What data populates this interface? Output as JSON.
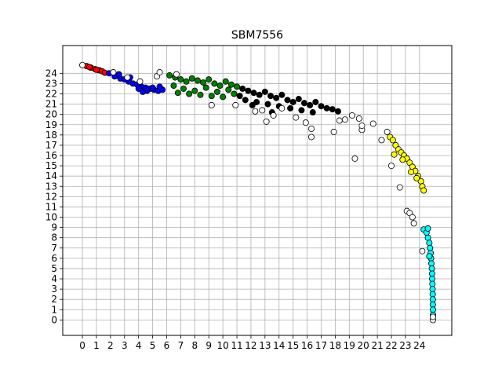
{
  "chart_data": {
    "type": "scatter",
    "title": "SBM7556",
    "xlabel": "",
    "ylabel": "",
    "xlim": [
      -1.4,
      26.3
    ],
    "ylim": [
      -1.5,
      26.7
    ],
    "xticks": [
      0,
      1,
      2,
      3,
      4,
      5,
      6,
      7,
      8,
      9,
      10,
      11,
      12,
      13,
      14,
      15,
      16,
      17,
      18,
      19,
      20,
      21,
      22,
      23,
      24
    ],
    "yticks": [
      0,
      1,
      2,
      3,
      4,
      5,
      6,
      7,
      8,
      9,
      10,
      11,
      12,
      13,
      14,
      15,
      16,
      17,
      18,
      19,
      20,
      21,
      22,
      23,
      24
    ],
    "grid": true,
    "legend": "none",
    "series": [
      {
        "color": "#ff0000",
        "points": [
          [
            0.3,
            24.7
          ],
          [
            0.6,
            24.55
          ],
          [
            0.9,
            24.4
          ],
          [
            1.2,
            24.3
          ],
          [
            1.4,
            24.2
          ],
          [
            1.6,
            24.05
          ],
          [
            0.5,
            24.6
          ],
          [
            1.0,
            24.35
          ]
        ]
      },
      {
        "color": "#0000ff",
        "points": [
          [
            1.9,
            24.0
          ],
          [
            2.3,
            23.7
          ],
          [
            2.7,
            23.5
          ],
          [
            3.0,
            23.4
          ],
          [
            3.3,
            23.2
          ],
          [
            3.6,
            23.0
          ],
          [
            3.9,
            22.9
          ],
          [
            4.2,
            22.7
          ],
          [
            4.5,
            22.6
          ],
          [
            4.8,
            22.5
          ],
          [
            5.1,
            22.4
          ],
          [
            5.4,
            22.3
          ],
          [
            5.7,
            22.4
          ],
          [
            4.0,
            22.5
          ],
          [
            4.6,
            22.3
          ],
          [
            5.0,
            22.6
          ],
          [
            3.4,
            23.6
          ],
          [
            2.6,
            23.9
          ],
          [
            5.5,
            22.7
          ],
          [
            4.3,
            22.2
          ]
        ]
      },
      {
        "color": "#008000",
        "points": [
          [
            6.2,
            23.8
          ],
          [
            6.6,
            23.6
          ],
          [
            7.0,
            23.4
          ],
          [
            7.4,
            23.2
          ],
          [
            7.8,
            23.5
          ],
          [
            8.2,
            23.3
          ],
          [
            8.6,
            23.1
          ],
          [
            9.0,
            23.4
          ],
          [
            9.4,
            23.0
          ],
          [
            9.8,
            22.8
          ],
          [
            10.2,
            23.2
          ],
          [
            10.6,
            22.9
          ],
          [
            11.0,
            22.7
          ],
          [
            6.5,
            22.8
          ],
          [
            7.2,
            22.5
          ],
          [
            8.0,
            22.3
          ],
          [
            8.8,
            22.6
          ],
          [
            9.6,
            22.2
          ],
          [
            10.4,
            22.4
          ],
          [
            6.8,
            22.1
          ],
          [
            7.6,
            22.0
          ],
          [
            8.4,
            21.9
          ],
          [
            9.2,
            21.8
          ],
          [
            10.0,
            21.7
          ],
          [
            10.8,
            22.0
          ]
        ]
      },
      {
        "color": "#000000",
        "points": [
          [
            11.4,
            22.5
          ],
          [
            11.8,
            22.3
          ],
          [
            12.2,
            22.1
          ],
          [
            12.6,
            21.9
          ],
          [
            13.0,
            22.2
          ],
          [
            13.4,
            21.8
          ],
          [
            13.8,
            21.6
          ],
          [
            14.2,
            21.9
          ],
          [
            14.6,
            21.4
          ],
          [
            15.0,
            21.2
          ],
          [
            15.4,
            21.5
          ],
          [
            15.8,
            21.1
          ],
          [
            16.2,
            20.9
          ],
          [
            16.6,
            21.2
          ],
          [
            17.0,
            20.8
          ],
          [
            17.4,
            20.6
          ],
          [
            17.8,
            20.5
          ],
          [
            18.2,
            20.3
          ],
          [
            11.6,
            21.4
          ],
          [
            12.4,
            21.2
          ],
          [
            13.2,
            21.0
          ],
          [
            14.0,
            20.8
          ],
          [
            14.8,
            20.6
          ],
          [
            15.6,
            20.4
          ],
          [
            16.4,
            20.2
          ],
          [
            13.5,
            20.2
          ],
          [
            12.1,
            20.9
          ],
          [
            11.2,
            21.8
          ]
        ]
      },
      {
        "color": "#ffff00",
        "points": [
          [
            21.9,
            17.8
          ],
          [
            22.1,
            17.5
          ],
          [
            22.3,
            17.0
          ],
          [
            22.5,
            16.6
          ],
          [
            22.7,
            16.3
          ],
          [
            22.9,
            16.0
          ],
          [
            23.1,
            15.7
          ],
          [
            23.3,
            15.3
          ],
          [
            23.5,
            14.9
          ],
          [
            23.7,
            14.5
          ],
          [
            23.9,
            14.0
          ],
          [
            24.1,
            13.5
          ],
          [
            24.2,
            13.0
          ],
          [
            24.3,
            12.6
          ],
          [
            22.2,
            16.1
          ],
          [
            22.8,
            15.6
          ],
          [
            23.4,
            14.4
          ],
          [
            23.8,
            13.8
          ]
        ]
      },
      {
        "color": "#00ffff",
        "points": [
          [
            24.3,
            8.8
          ],
          [
            24.5,
            8.5
          ],
          [
            24.6,
            8.0
          ],
          [
            24.7,
            7.5
          ],
          [
            24.75,
            7.0
          ],
          [
            24.8,
            6.5
          ],
          [
            24.82,
            6.0
          ],
          [
            24.85,
            5.5
          ],
          [
            24.88,
            5.0
          ],
          [
            24.9,
            4.5
          ],
          [
            24.9,
            4.0
          ],
          [
            24.92,
            3.5
          ],
          [
            24.93,
            3.0
          ],
          [
            24.94,
            2.5
          ],
          [
            24.95,
            2.0
          ],
          [
            24.95,
            1.5
          ],
          [
            24.96,
            1.0
          ],
          [
            24.96,
            0.5
          ],
          [
            24.6,
            8.9
          ],
          [
            24.7,
            6.2
          ]
        ]
      },
      {
        "color": "#ffffff",
        "points": [
          [
            0.0,
            24.8
          ],
          [
            2.2,
            24.1
          ],
          [
            3.2,
            23.6
          ],
          [
            4.1,
            23.2
          ],
          [
            5.3,
            23.7
          ],
          [
            5.5,
            24.1
          ],
          [
            6.7,
            23.9
          ],
          [
            9.2,
            20.9
          ],
          [
            10.9,
            20.9
          ],
          [
            12.3,
            20.3
          ],
          [
            12.8,
            20.4
          ],
          [
            13.1,
            19.3
          ],
          [
            13.6,
            19.9
          ],
          [
            14.2,
            20.6
          ],
          [
            15.2,
            19.7
          ],
          [
            15.9,
            19.2
          ],
          [
            16.3,
            18.6
          ],
          [
            16.3,
            17.8
          ],
          [
            17.9,
            18.3
          ],
          [
            18.3,
            19.4
          ],
          [
            18.7,
            19.5
          ],
          [
            19.2,
            19.9
          ],
          [
            19.7,
            19.6
          ],
          [
            19.9,
            18.5
          ],
          [
            19.9,
            18.9
          ],
          [
            20.7,
            19.1
          ],
          [
            21.3,
            17.5
          ],
          [
            21.7,
            18.3
          ],
          [
            22.0,
            15.0
          ],
          [
            22.6,
            12.9
          ],
          [
            23.1,
            10.6
          ],
          [
            23.3,
            10.4
          ],
          [
            23.6,
            9.4
          ],
          [
            19.4,
            15.7
          ],
          [
            24.2,
            6.7
          ],
          [
            24.96,
            0.0
          ],
          [
            24.96,
            0.3
          ],
          [
            23.5,
            10.0
          ]
        ]
      }
    ]
  }
}
